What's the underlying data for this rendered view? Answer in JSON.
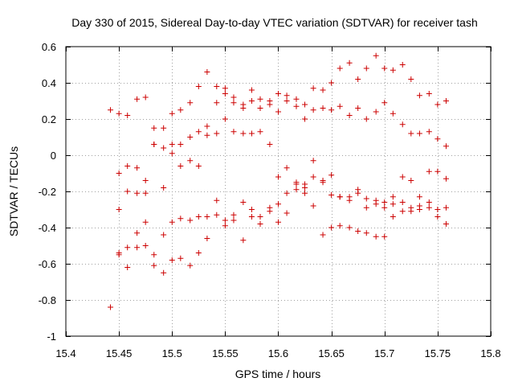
{
  "chart_data": {
    "type": "scatter",
    "title": "Day 330 of 2015, Sidereal Day-to-day VTEC variation (SDTVAR) for receiver tash",
    "xlabel": "GPS time / hours",
    "ylabel": "SDTVAR / TECUs",
    "xlim": [
      15.4,
      15.8
    ],
    "ylim": [
      -1,
      0.6
    ],
    "x_ticks": [
      15.4,
      15.45,
      15.5,
      15.55,
      15.6,
      15.65,
      15.7,
      15.75,
      15.8
    ],
    "x_tick_labels": [
      "15.4",
      "15.45",
      "15.5",
      "15.55",
      "15.6",
      "15.65",
      "15.7",
      "15.75",
      "15.8"
    ],
    "y_ticks": [
      -1,
      -0.8,
      -0.6,
      -0.4,
      -0.2,
      0,
      0.2,
      0.4,
      0.6
    ],
    "y_tick_labels": [
      "-1",
      "-0.8",
      "-0.6",
      "-0.4",
      "-0.2",
      "0",
      "0.2",
      "0.4",
      "0.6"
    ],
    "grid": true,
    "marker": "+",
    "color": "#cc0000",
    "series": [
      {
        "name": "SDTVAR",
        "points": [
          [
            15.442,
            0.25
          ],
          [
            15.442,
            -0.84
          ],
          [
            15.45,
            0.23
          ],
          [
            15.45,
            -0.1
          ],
          [
            15.45,
            -0.3
          ],
          [
            15.45,
            -0.54
          ],
          [
            15.45,
            -0.55
          ],
          [
            15.458,
            0.22
          ],
          [
            15.458,
            -0.06
          ],
          [
            15.458,
            -0.2
          ],
          [
            15.458,
            -0.51
          ],
          [
            15.458,
            -0.62
          ],
          [
            15.467,
            0.31
          ],
          [
            15.467,
            -0.07
          ],
          [
            15.467,
            -0.21
          ],
          [
            15.467,
            -0.43
          ],
          [
            15.467,
            -0.51
          ],
          [
            15.475,
            0.32
          ],
          [
            15.475,
            -0.14
          ],
          [
            15.475,
            -0.21
          ],
          [
            15.475,
            -0.37
          ],
          [
            15.475,
            -0.5
          ],
          [
            15.483,
            0.15
          ],
          [
            15.483,
            0.06
          ],
          [
            15.483,
            0.06
          ],
          [
            15.483,
            -0.55
          ],
          [
            15.483,
            -0.61
          ],
          [
            15.492,
            0.15
          ],
          [
            15.492,
            0.04
          ],
          [
            15.492,
            -0.18
          ],
          [
            15.492,
            -0.44
          ],
          [
            15.492,
            -0.65
          ],
          [
            15.5,
            0.23
          ],
          [
            15.5,
            0.06
          ],
          [
            15.5,
            0.01
          ],
          [
            15.5,
            -0.37
          ],
          [
            15.5,
            -0.58
          ],
          [
            15.508,
            0.25
          ],
          [
            15.508,
            0.06
          ],
          [
            15.508,
            -0.06
          ],
          [
            15.508,
            -0.35
          ],
          [
            15.508,
            -0.57
          ],
          [
            15.517,
            0.29
          ],
          [
            15.517,
            0.1
          ],
          [
            15.517,
            -0.03
          ],
          [
            15.517,
            -0.36
          ],
          [
            15.517,
            -0.61
          ],
          [
            15.525,
            0.38
          ],
          [
            15.525,
            0.13
          ],
          [
            15.525,
            -0.06
          ],
          [
            15.525,
            -0.34
          ],
          [
            15.525,
            -0.54
          ],
          [
            15.533,
            0.46
          ],
          [
            15.533,
            0.16
          ],
          [
            15.533,
            0.11
          ],
          [
            15.533,
            -0.34
          ],
          [
            15.533,
            -0.46
          ],
          [
            15.542,
            0.38
          ],
          [
            15.542,
            0.29
          ],
          [
            15.542,
            0.12
          ],
          [
            15.542,
            -0.25
          ],
          [
            15.542,
            -0.33
          ],
          [
            15.55,
            0.37
          ],
          [
            15.55,
            0.34
          ],
          [
            15.55,
            0.2
          ],
          [
            15.55,
            -0.36
          ],
          [
            15.55,
            -0.39
          ],
          [
            15.558,
            0.32
          ],
          [
            15.558,
            0.29
          ],
          [
            15.558,
            0.13
          ],
          [
            15.558,
            -0.33
          ],
          [
            15.558,
            -0.36
          ],
          [
            15.567,
            0.28
          ],
          [
            15.567,
            0.26
          ],
          [
            15.567,
            0.12
          ],
          [
            15.567,
            -0.26
          ],
          [
            15.567,
            -0.47
          ],
          [
            15.575,
            0.36
          ],
          [
            15.575,
            0.3
          ],
          [
            15.575,
            0.12
          ],
          [
            15.575,
            -0.3
          ],
          [
            15.575,
            -0.34
          ],
          [
            15.583,
            0.31
          ],
          [
            15.583,
            0.26
          ],
          [
            15.583,
            0.13
          ],
          [
            15.583,
            -0.34
          ],
          [
            15.583,
            -0.38
          ],
          [
            15.592,
            0.3
          ],
          [
            15.592,
            0.28
          ],
          [
            15.592,
            0.06
          ],
          [
            15.592,
            -0.29
          ],
          [
            15.592,
            -0.31
          ],
          [
            15.6,
            0.34
          ],
          [
            15.6,
            0.24
          ],
          [
            15.6,
            -0.12
          ],
          [
            15.6,
            -0.27
          ],
          [
            15.6,
            -0.37
          ],
          [
            15.608,
            0.33
          ],
          [
            15.608,
            0.3
          ],
          [
            15.608,
            -0.07
          ],
          [
            15.608,
            -0.21
          ],
          [
            15.608,
            -0.32
          ],
          [
            15.617,
            0.31
          ],
          [
            15.617,
            0.27
          ],
          [
            15.617,
            -0.15
          ],
          [
            15.617,
            -0.16
          ],
          [
            15.617,
            -0.19
          ],
          [
            15.625,
            0.28
          ],
          [
            15.625,
            0.2
          ],
          [
            15.625,
            -0.16
          ],
          [
            15.625,
            -0.18
          ],
          [
            15.625,
            -0.21
          ],
          [
            15.633,
            0.37
          ],
          [
            15.633,
            0.25
          ],
          [
            15.633,
            -0.03
          ],
          [
            15.633,
            -0.12
          ],
          [
            15.633,
            -0.28
          ],
          [
            15.642,
            0.36
          ],
          [
            15.642,
            0.26
          ],
          [
            15.642,
            -0.14
          ],
          [
            15.642,
            -0.15
          ],
          [
            15.642,
            -0.44
          ],
          [
            15.65,
            0.4
          ],
          [
            15.65,
            0.25
          ],
          [
            15.65,
            -0.11
          ],
          [
            15.65,
            -0.22
          ],
          [
            15.65,
            -0.4
          ],
          [
            15.658,
            0.48
          ],
          [
            15.658,
            0.27
          ],
          [
            15.658,
            -0.23
          ],
          [
            15.658,
            -0.23
          ],
          [
            15.658,
            -0.39
          ],
          [
            15.667,
            0.51
          ],
          [
            15.667,
            0.22
          ],
          [
            15.667,
            -0.23
          ],
          [
            15.667,
            -0.25
          ],
          [
            15.667,
            -0.4
          ],
          [
            15.675,
            0.42
          ],
          [
            15.675,
            0.26
          ],
          [
            15.675,
            -0.19
          ],
          [
            15.675,
            -0.21
          ],
          [
            15.675,
            -0.42
          ],
          [
            15.683,
            0.48
          ],
          [
            15.683,
            0.2
          ],
          [
            15.683,
            -0.24
          ],
          [
            15.683,
            -0.29
          ],
          [
            15.683,
            -0.43
          ],
          [
            15.692,
            0.55
          ],
          [
            15.692,
            0.24
          ],
          [
            15.692,
            -0.25
          ],
          [
            15.692,
            -0.27
          ],
          [
            15.692,
            -0.45
          ],
          [
            15.7,
            0.48
          ],
          [
            15.7,
            0.29
          ],
          [
            15.7,
            -0.26
          ],
          [
            15.7,
            -0.29
          ],
          [
            15.7,
            -0.45
          ],
          [
            15.708,
            0.47
          ],
          [
            15.708,
            0.23
          ],
          [
            15.708,
            -0.23
          ],
          [
            15.708,
            -0.27
          ],
          [
            15.708,
            -0.34
          ],
          [
            15.717,
            0.5
          ],
          [
            15.717,
            0.17
          ],
          [
            15.717,
            -0.12
          ],
          [
            15.717,
            -0.26
          ],
          [
            15.717,
            -0.31
          ],
          [
            15.725,
            0.42
          ],
          [
            15.725,
            0.12
          ],
          [
            15.725,
            -0.14
          ],
          [
            15.725,
            -0.29
          ],
          [
            15.725,
            -0.31
          ],
          [
            15.733,
            0.33
          ],
          [
            15.733,
            0.12
          ],
          [
            15.733,
            -0.23
          ],
          [
            15.733,
            -0.28
          ],
          [
            15.733,
            -0.3
          ],
          [
            15.742,
            0.34
          ],
          [
            15.742,
            0.13
          ],
          [
            15.742,
            -0.09
          ],
          [
            15.742,
            -0.26
          ],
          [
            15.742,
            -0.29
          ],
          [
            15.75,
            0.28
          ],
          [
            15.75,
            0.09
          ],
          [
            15.75,
            -0.09
          ],
          [
            15.75,
            -0.3
          ],
          [
            15.75,
            -0.34
          ],
          [
            15.758,
            0.3
          ],
          [
            15.758,
            0.05
          ],
          [
            15.758,
            -0.13
          ],
          [
            15.758,
            -0.29
          ],
          [
            15.758,
            -0.38
          ]
        ]
      }
    ]
  }
}
